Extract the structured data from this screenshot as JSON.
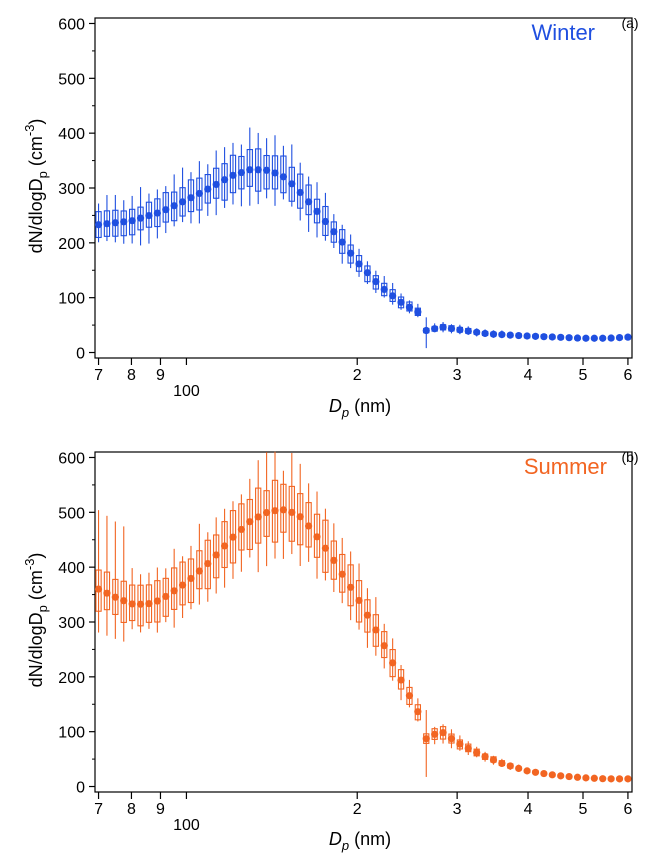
{
  "chart_data": [
    {
      "type": "box",
      "panel_label": "(a)",
      "annotation": "Winter",
      "color": "#1f4fe0",
      "xlabel": "D_p (nm)",
      "xlabel_main": "D",
      "xlabel_sub": "p",
      "xlabel_unit": " (nm)",
      "ylabel": "dN/dlogD_p (cm^-3)",
      "x_scale": "log",
      "xlim": [
        69,
        610
      ],
      "ylim": [
        -10,
        610
      ],
      "y_ticks": [
        0,
        100,
        200,
        300,
        400,
        500,
        600
      ],
      "x_ticks": [
        {
          "value": 70,
          "label": "7"
        },
        {
          "value": 80,
          "label": "8"
        },
        {
          "value": 90,
          "label": "9"
        },
        {
          "value": 100,
          "label": "100"
        },
        {
          "value": 200,
          "label": "2"
        },
        {
          "value": 300,
          "label": "3"
        },
        {
          "value": 400,
          "label": "4"
        },
        {
          "value": 500,
          "label": "5"
        },
        {
          "value": 600,
          "label": "6"
        }
      ],
      "control_points": [
        [
          70,
          233
        ],
        [
          80,
          240
        ],
        [
          90,
          256
        ],
        [
          100,
          278
        ],
        [
          110,
          300
        ],
        [
          120,
          322
        ],
        [
          130,
          334
        ],
        [
          140,
          332
        ],
        [
          150,
          318
        ],
        [
          160,
          288
        ],
        [
          170,
          257
        ],
        [
          180,
          226
        ],
        [
          190,
          196
        ],
        [
          200,
          165
        ],
        [
          220,
          120
        ],
        [
          240,
          90
        ],
        [
          260,
          70
        ],
        [
          265,
          38
        ],
        [
          280,
          47
        ],
        [
          300,
          42
        ],
        [
          340,
          34
        ],
        [
          400,
          30
        ],
        [
          450,
          28
        ],
        [
          500,
          26
        ],
        [
          550,
          26
        ],
        [
          600,
          28
        ]
      ],
      "spread": {
        "q_low": 0.1,
        "q_high": 0.1,
        "w_low": 0.16,
        "w_high": 0.18
      }
    },
    {
      "type": "box",
      "panel_label": "(b)",
      "annotation": "Summer",
      "color": "#f26522",
      "xlabel": "D_p (nm)",
      "xlabel_main": "D",
      "xlabel_sub": "p",
      "xlabel_unit": " (nm)",
      "ylabel": "dN/dlogD_p (cm^-3)",
      "x_scale": "log",
      "xlim": [
        69,
        610
      ],
      "ylim": [
        -10,
        610
      ],
      "y_ticks": [
        0,
        100,
        200,
        300,
        400,
        500,
        600
      ],
      "x_ticks": [
        {
          "value": 70,
          "label": "7"
        },
        {
          "value": 80,
          "label": "8"
        },
        {
          "value": 90,
          "label": "9"
        },
        {
          "value": 100,
          "label": "100"
        },
        {
          "value": 200,
          "label": "2"
        },
        {
          "value": 300,
          "label": "3"
        },
        {
          "value": 400,
          "label": "4"
        },
        {
          "value": 500,
          "label": "5"
        },
        {
          "value": 600,
          "label": "6"
        }
      ],
      "control_points": [
        [
          70,
          360
        ],
        [
          75,
          345
        ],
        [
          80,
          333
        ],
        [
          85,
          332
        ],
        [
          90,
          340
        ],
        [
          100,
          372
        ],
        [
          110,
          410
        ],
        [
          120,
          452
        ],
        [
          130,
          485
        ],
        [
          140,
          502
        ],
        [
          150,
          505
        ],
        [
          160,
          490
        ],
        [
          170,
          455
        ],
        [
          180,
          420
        ],
        [
          190,
          380
        ],
        [
          200,
          345
        ],
        [
          220,
          270
        ],
        [
          240,
          190
        ],
        [
          255,
          140
        ],
        [
          260,
          118
        ],
        [
          265,
          85
        ],
        [
          280,
          102
        ],
        [
          300,
          80
        ],
        [
          330,
          58
        ],
        [
          360,
          42
        ],
        [
          400,
          28
        ],
        [
          450,
          20
        ],
        [
          500,
          16
        ],
        [
          550,
          14
        ],
        [
          600,
          14
        ]
      ],
      "spread": {
        "q_low": 0.1,
        "q_high": 0.1,
        "w_low": 0.16,
        "w_high": 0.17
      }
    }
  ]
}
